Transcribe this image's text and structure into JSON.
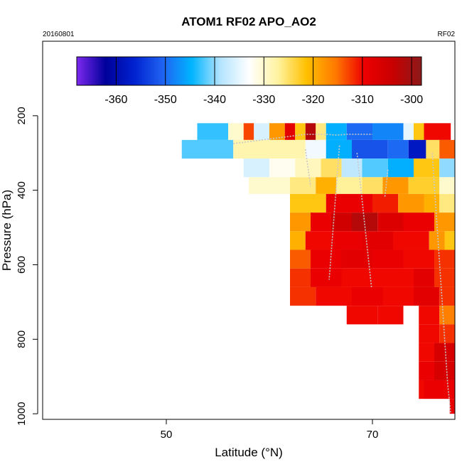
{
  "header": {
    "title": "ATOM1 RF02 APO_AO2",
    "left_tag": "20160801",
    "right_tag": "RF02"
  },
  "chart_data": {
    "type": "heatmap",
    "xlabel": "Latitude (°N)",
    "ylabel": "Pressure (hPa)",
    "xlim": [
      38,
      78
    ],
    "ylim": [
      1015,
      0
    ],
    "y_reversed": true,
    "x_ticks": [
      50,
      70
    ],
    "y_ticks": [
      200,
      400,
      600,
      800,
      1000
    ],
    "grid": false,
    "colorbar": {
      "position": "top",
      "range": [
        -368,
        -298
      ],
      "ticks": [
        -360,
        -350,
        -340,
        -330,
        -320,
        -310,
        -300
      ],
      "tick_labels": [
        "-360",
        "-350",
        "-340",
        "-330",
        "-320",
        "-310",
        "-300"
      ],
      "colors": [
        "#7d28ef",
        "#00009a",
        "#0022d0",
        "#1f63f2",
        "#00b4ff",
        "#b4e4ff",
        "#ffffff",
        "#fff3a0",
        "#ffc000",
        "#ff7a00",
        "#ee0000",
        "#c80000",
        "#8c1a1a"
      ]
    },
    "rows": [
      {
        "p": [
          220,
          265
        ],
        "segments": [
          {
            "lat": [
              53,
              56
            ],
            "value": -343
          },
          {
            "lat": [
              56,
              57.5
            ],
            "value": -330
          },
          {
            "lat": [
              57.5,
              58.5
            ],
            "value": -313
          },
          {
            "lat": [
              58.5,
              60
            ],
            "value": -336
          },
          {
            "lat": [
              60,
              61.5
            ],
            "value": -318
          },
          {
            "lat": [
              61.5,
              62.5
            ],
            "value": -308
          },
          {
            "lat": [
              62.5,
              63.5
            ],
            "value": -322
          },
          {
            "lat": [
              63.5,
              64.5
            ],
            "value": -302
          },
          {
            "lat": [
              64.5,
              65.5
            ],
            "value": -326
          },
          {
            "lat": [
              65.5,
              67.5
            ],
            "value": -345
          },
          {
            "lat": [
              67.5,
              70
            ],
            "value": -350
          },
          {
            "lat": [
              70,
              73
            ],
            "value": -348
          },
          {
            "lat": [
              73,
              74
            ],
            "value": -335
          },
          {
            "lat": [
              74,
              75
            ],
            "value": -322
          },
          {
            "lat": [
              75,
              76
            ],
            "value": -310
          },
          {
            "lat": [
              76,
              77.6
            ],
            "value": -310
          }
        ]
      },
      {
        "p": [
          265,
          315
        ],
        "segments": [
          {
            "lat": [
              51.5,
              56.5
            ],
            "value": -342
          },
          {
            "lat": [
              56.5,
              63.5
            ],
            "value": -328
          },
          {
            "lat": [
              63.5,
              65.5
            ],
            "value": -334
          },
          {
            "lat": [
              65.5,
              68
            ],
            "value": -345
          },
          {
            "lat": [
              68,
              71.5
            ],
            "value": -352
          },
          {
            "lat": [
              71.5,
              73.5
            ],
            "value": -350
          },
          {
            "lat": [
              73.5,
              75.2
            ],
            "value": -358
          },
          {
            "lat": [
              75.2,
              76.5
            ],
            "value": -325
          },
          {
            "lat": [
              76.5,
              78
            ],
            "value": -314
          }
        ]
      },
      {
        "p": [
          315,
          365
        ],
        "segments": [
          {
            "lat": [
              57.5,
              60
            ],
            "value": -336
          },
          {
            "lat": [
              60,
              62.5
            ],
            "value": -332
          },
          {
            "lat": [
              62.5,
              65
            ],
            "value": -329
          },
          {
            "lat": [
              65,
              67
            ],
            "value": -325
          },
          {
            "lat": [
              67,
              69
            ],
            "value": -338
          },
          {
            "lat": [
              69,
              71.5
            ],
            "value": -342
          },
          {
            "lat": [
              71.5,
              74
            ],
            "value": -345
          },
          {
            "lat": [
              74,
              76.5
            ],
            "value": -322
          },
          {
            "lat": [
              76.5,
              78
            ],
            "value": -340
          }
        ]
      },
      {
        "p": [
          365,
          410
        ],
        "segments": [
          {
            "lat": [
              58,
              62
            ],
            "value": -330
          },
          {
            "lat": [
              62,
              64.5
            ],
            "value": -326
          },
          {
            "lat": [
              64.5,
              66.5
            ],
            "value": -320
          },
          {
            "lat": [
              66.5,
              69
            ],
            "value": -327
          },
          {
            "lat": [
              69,
              71
            ],
            "value": -325
          },
          {
            "lat": [
              71,
              73.5
            ],
            "value": -318
          },
          {
            "lat": [
              73.5,
              76.5
            ],
            "value": -323
          },
          {
            "lat": [
              76.5,
              78
            ],
            "value": -330
          }
        ]
      },
      {
        "p": [
          410,
          460
        ],
        "segments": [
          {
            "lat": [
              62,
              65.5
            ],
            "value": -322
          },
          {
            "lat": [
              65.5,
              70
            ],
            "value": -309
          },
          {
            "lat": [
              70,
              72.5
            ],
            "value": -311
          },
          {
            "lat": [
              72.5,
              75
            ],
            "value": -318
          },
          {
            "lat": [
              75,
              76.5
            ],
            "value": -320
          },
          {
            "lat": [
              76.5,
              78
            ],
            "value": -326
          }
        ]
      },
      {
        "p": [
          460,
          510
        ],
        "segments": [
          {
            "lat": [
              62,
              64
            ],
            "value": -318
          },
          {
            "lat": [
              64,
              66
            ],
            "value": -309
          },
          {
            "lat": [
              66,
              68
            ],
            "value": -305
          },
          {
            "lat": [
              68,
              70.5
            ],
            "value": -302
          },
          {
            "lat": [
              70.5,
              73
            ],
            "value": -307
          },
          {
            "lat": [
              73,
              76
            ],
            "value": -309
          },
          {
            "lat": [
              76,
              78
            ],
            "value": -318
          }
        ]
      },
      {
        "p": [
          510,
          560
        ],
        "segments": [
          {
            "lat": [
              62,
              63.5
            ],
            "value": -320
          },
          {
            "lat": [
              63.5,
              66
            ],
            "value": -310
          },
          {
            "lat": [
              66,
              69
            ],
            "value": -309
          },
          {
            "lat": [
              69,
              72
            ],
            "value": -308
          },
          {
            "lat": [
              72,
              75.5
            ],
            "value": -310
          },
          {
            "lat": [
              75.5,
              77
            ],
            "value": -318
          },
          {
            "lat": [
              77,
              78
            ],
            "value": -322
          }
        ]
      },
      {
        "p": [
          560,
          610
        ],
        "segments": [
          {
            "lat": [
              62,
              64
            ],
            "value": -314
          },
          {
            "lat": [
              64,
              67
            ],
            "value": -309
          },
          {
            "lat": [
              67,
              70
            ],
            "value": -308
          },
          {
            "lat": [
              70,
              73
            ],
            "value": -309
          },
          {
            "lat": [
              73,
              76
            ],
            "value": -310
          },
          {
            "lat": [
              76,
              78
            ],
            "value": -312
          }
        ]
      },
      {
        "p": [
          610,
          660
        ],
        "segments": [
          {
            "lat": [
              62,
              64
            ],
            "value": -312
          },
          {
            "lat": [
              64,
              67
            ],
            "value": -309
          },
          {
            "lat": [
              67,
              71
            ],
            "value": -310
          },
          {
            "lat": [
              71,
              74
            ],
            "value": -310
          },
          {
            "lat": [
              74,
              76
            ],
            "value": -308
          },
          {
            "lat": [
              76,
              78
            ],
            "value": -312
          }
        ]
      },
      {
        "p": [
          660,
          710
        ],
        "segments": [
          {
            "lat": [
              62,
              64.5
            ],
            "value": -312
          },
          {
            "lat": [
              64.5,
              68
            ],
            "value": -310
          },
          {
            "lat": [
              68,
              71
            ],
            "value": -309
          },
          {
            "lat": [
              71,
              74
            ],
            "value": -310
          },
          {
            "lat": [
              74,
              76.5
            ],
            "value": -308
          },
          {
            "lat": [
              76.5,
              78
            ],
            "value": -312
          }
        ]
      },
      {
        "p": [
          710,
          760
        ],
        "segments": [
          {
            "lat": [
              67.5,
              70.5
            ],
            "value": -310
          },
          {
            "lat": [
              70.5,
              73
            ],
            "value": -310
          },
          {
            "lat": [
              74.5,
              76.5
            ],
            "value": -310
          },
          {
            "lat": [
              76.5,
              78
            ],
            "value": -316
          }
        ]
      },
      {
        "p": [
          760,
          810
        ],
        "segments": [
          {
            "lat": [
              74.5,
              76.5
            ],
            "value": -310
          },
          {
            "lat": [
              76.5,
              78
            ],
            "value": -312
          }
        ]
      },
      {
        "p": [
          810,
          860
        ],
        "segments": [
          {
            "lat": [
              74.5,
              76
            ],
            "value": -310
          },
          {
            "lat": [
              76,
              78
            ],
            "value": -306
          }
        ]
      },
      {
        "p": [
          860,
          910
        ],
        "segments": [
          {
            "lat": [
              74.5,
              76
            ],
            "value": -309
          },
          {
            "lat": [
              76,
              78
            ],
            "value": -306
          }
        ]
      },
      {
        "p": [
          910,
          960
        ],
        "segments": [
          {
            "lat": [
              74.5,
              75
            ],
            "value": -310
          },
          {
            "lat": [
              75,
              78
            ],
            "value": -309
          }
        ]
      },
      {
        "p": [
          960,
          1000
        ],
        "segments": [
          {
            "lat": [
              77.5,
              78
            ],
            "value": -309
          }
        ]
      }
    ],
    "flight_track": [
      [
        [
          56.5,
          275
        ],
        [
          63.5,
          250
        ],
        [
          65.5,
          250
        ],
        [
          66.5,
          252
        ],
        [
          67.5,
          250
        ],
        [
          70,
          250
        ]
      ],
      [
        [
          63.5,
          290
        ],
        [
          64,
          390
        ]
      ],
      [
        [
          66.8,
          280
        ],
        [
          65.8,
          640
        ]
      ],
      [
        [
          68.5,
          300
        ],
        [
          69.9,
          660
        ]
      ],
      [
        [
          71.5,
          345
        ],
        [
          71.2,
          420
        ]
      ],
      [
        [
          75.8,
          300
        ],
        [
          77.3,
          920
        ],
        [
          77.6,
          1000
        ]
      ]
    ]
  }
}
